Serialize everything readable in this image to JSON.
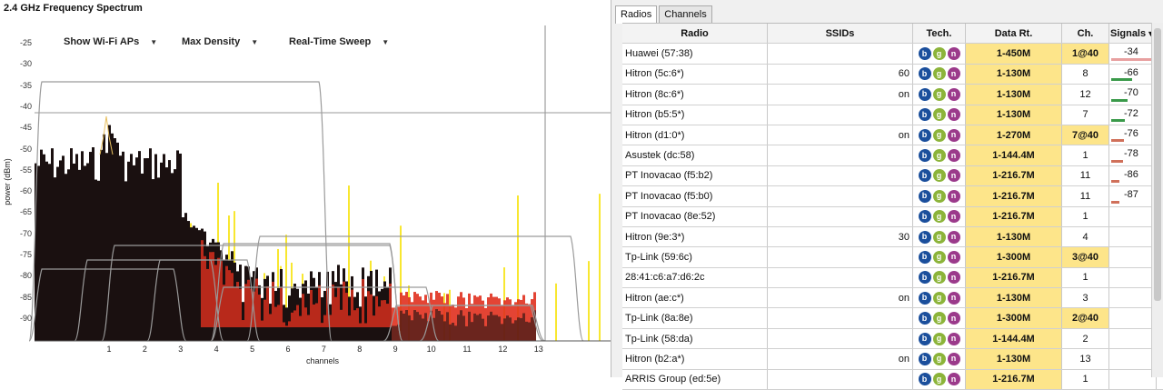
{
  "spectrum": {
    "title": "2.4 GHz Frequency Spectrum",
    "menus": [
      "Show Wi-Fi APs",
      "Max Density",
      "Real-Time Sweep"
    ],
    "ylabel": "power (dBm)",
    "xlabel": "channels",
    "yticks": [
      "-25",
      "-30",
      "-35",
      "-40",
      "-45",
      "-50",
      "-55",
      "-60",
      "-65",
      "-70",
      "-75",
      "-80",
      "-85",
      "-90"
    ],
    "xticks": [
      "1",
      "2",
      "3",
      "4",
      "5",
      "6",
      "7",
      "8",
      "9",
      "10",
      "11",
      "12",
      "13"
    ],
    "colors": {
      "density_dark": "#1a1010",
      "density_red": "#e0301e",
      "density_yellow": "#f7e41a",
      "ap_curve": "#9a9a9a"
    }
  },
  "tabs": [
    "Radios",
    "Channels"
  ],
  "columns": {
    "radio": "Radio",
    "ssids": "SSIDs",
    "tech": "Tech.",
    "rate": "Data Rt.",
    "ch": "Ch.",
    "signals": "Signals"
  },
  "tech_badges": [
    "b",
    "g",
    "n"
  ],
  "rows": [
    {
      "radio": "Huawei (57:38)",
      "ssid": "",
      "rate": "1-450M",
      "ch": "1@40",
      "wide": true,
      "signal": "-34",
      "bar_color": "#e8a0a0",
      "bar_level": 0.95
    },
    {
      "radio": "Hitron (5c:6*)",
      "ssid": "60",
      "rate": "1-130M",
      "ch": "8",
      "wide": false,
      "signal": "-66",
      "bar_color": "#3a9a4a",
      "bar_level": 0.45
    },
    {
      "radio": "Hitron (8c:6*)",
      "ssid": "on",
      "rate": "1-130M",
      "ch": "12",
      "wide": false,
      "signal": "-70",
      "bar_color": "#3a9a4a",
      "bar_level": 0.35
    },
    {
      "radio": "Hitron (b5:5*)",
      "ssid": "",
      "rate": "1-130M",
      "ch": "7",
      "wide": false,
      "signal": "-72",
      "bar_color": "#3a9a4a",
      "bar_level": 0.3
    },
    {
      "radio": "Hitron (d1:0*)",
      "ssid": "on",
      "rate": "1-270M",
      "ch": "7@40",
      "wide": true,
      "signal": "-76",
      "bar_color": "#d0705a",
      "bar_level": 0.28
    },
    {
      "radio": "Asustek (dc:58)",
      "ssid": "",
      "rate": "1-144.4M",
      "ch": "1",
      "wide": false,
      "signal": "-78",
      "bar_color": "#d0705a",
      "bar_level": 0.25
    },
    {
      "radio": "PT Inovacao (f5:b2)",
      "ssid": "",
      "rate": "1-216.7M",
      "ch": "11",
      "wide": false,
      "signal": "-86",
      "bar_color": "#d0705a",
      "bar_level": 0.18
    },
    {
      "radio": "PT Inovacao (f5:b0)",
      "ssid": "",
      "rate": "1-216.7M",
      "ch": "11",
      "wide": false,
      "signal": "-87",
      "bar_color": "#d0705a",
      "bar_level": 0.17
    },
    {
      "radio": "PT Inovacao (8e:52)",
      "ssid": "",
      "rate": "1-216.7M",
      "ch": "1",
      "wide": false,
      "signal": "",
      "bar_color": "",
      "bar_level": 0
    },
    {
      "radio": "Hitron (9e:3*)",
      "ssid": "30",
      "rate": "1-130M",
      "ch": "4",
      "wide": false,
      "signal": "",
      "bar_color": "",
      "bar_level": 0
    },
    {
      "radio": "Tp-Link (59:6c)",
      "ssid": "",
      "rate": "1-300M",
      "ch": "3@40",
      "wide": true,
      "signal": "",
      "bar_color": "",
      "bar_level": 0
    },
    {
      "radio": "28:41:c6:a7:d6:2c",
      "ssid": "",
      "rate": "1-216.7M",
      "ch": "1",
      "wide": false,
      "signal": "",
      "bar_color": "",
      "bar_level": 0
    },
    {
      "radio": "Hitron (ae:c*)",
      "ssid": "on",
      "rate": "1-130M",
      "ch": "3",
      "wide": false,
      "signal": "",
      "bar_color": "",
      "bar_level": 0
    },
    {
      "radio": "Tp-Link (8a:8e)",
      "ssid": "",
      "rate": "1-300M",
      "ch": "2@40",
      "wide": true,
      "signal": "",
      "bar_color": "",
      "bar_level": 0
    },
    {
      "radio": "Tp-Link (58:da)",
      "ssid": "",
      "rate": "1-144.4M",
      "ch": "2",
      "wide": false,
      "signal": "",
      "bar_color": "",
      "bar_level": 0
    },
    {
      "radio": "Hitron (b2:a*)",
      "ssid": "on",
      "rate": "1-130M",
      "ch": "13",
      "wide": false,
      "signal": "",
      "bar_color": "",
      "bar_level": 0
    },
    {
      "radio": "ARRIS Group (ed:5e)",
      "ssid": "",
      "rate": "1-216.7M",
      "ch": "1",
      "wide": false,
      "signal": "",
      "bar_color": "",
      "bar_level": 0
    }
  ]
}
